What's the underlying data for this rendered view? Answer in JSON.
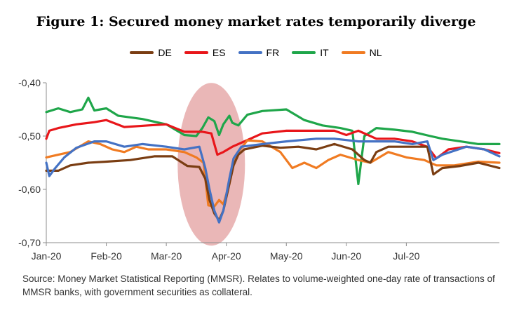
{
  "title": "Figure 1: Secured money market rates temporarily diverge",
  "source": "Source: Money Market Statistical Reporting (MMSR). Relates to volume-weighted one-day rate of transactions of MMSR banks, with government securities as collateral.",
  "chart_data": {
    "type": "line",
    "x_ticks": [
      "Jan-20",
      "Feb-20",
      "Mar-20",
      "Apr-20",
      "May-20",
      "Jun-20",
      "Jul-20"
    ],
    "y_ticks": [
      "-0,40",
      "-0,50",
      "-0,60",
      "-0,70"
    ],
    "ylim": [
      -0.7,
      -0.4
    ],
    "xlim": [
      0,
      7.55
    ],
    "grid": false,
    "legend_position": "top",
    "highlight": {
      "shape": "ellipse",
      "x_center": 2.75,
      "y_center": -0.553,
      "color": "#d97b7b"
    },
    "series": [
      {
        "name": "DE",
        "color": "#7a3d12",
        "points": [
          [
            0.0,
            -0.565
          ],
          [
            0.2,
            -0.565
          ],
          [
            0.4,
            -0.555
          ],
          [
            0.7,
            -0.55
          ],
          [
            1.0,
            -0.548
          ],
          [
            1.4,
            -0.545
          ],
          [
            1.8,
            -0.538
          ],
          [
            2.1,
            -0.538
          ],
          [
            2.35,
            -0.556
          ],
          [
            2.55,
            -0.558
          ],
          [
            2.65,
            -0.58
          ],
          [
            2.72,
            -0.62
          ],
          [
            2.8,
            -0.645
          ],
          [
            2.88,
            -0.658
          ],
          [
            2.95,
            -0.64
          ],
          [
            3.05,
            -0.59
          ],
          [
            3.12,
            -0.555
          ],
          [
            3.2,
            -0.535
          ],
          [
            3.3,
            -0.525
          ],
          [
            3.6,
            -0.518
          ],
          [
            3.9,
            -0.522
          ],
          [
            4.2,
            -0.52
          ],
          [
            4.5,
            -0.525
          ],
          [
            4.8,
            -0.515
          ],
          [
            5.1,
            -0.525
          ],
          [
            5.3,
            -0.545
          ],
          [
            5.4,
            -0.55
          ],
          [
            5.5,
            -0.53
          ],
          [
            5.7,
            -0.52
          ],
          [
            6.0,
            -0.52
          ],
          [
            6.35,
            -0.52
          ],
          [
            6.45,
            -0.572
          ],
          [
            6.6,
            -0.56
          ],
          [
            6.9,
            -0.556
          ],
          [
            7.2,
            -0.55
          ],
          [
            7.55,
            -0.56
          ]
        ]
      },
      {
        "name": "ES",
        "color": "#e8161a",
        "points": [
          [
            0.0,
            -0.505
          ],
          [
            0.05,
            -0.49
          ],
          [
            0.2,
            -0.485
          ],
          [
            0.5,
            -0.478
          ],
          [
            0.8,
            -0.474
          ],
          [
            1.0,
            -0.47
          ],
          [
            1.3,
            -0.483
          ],
          [
            1.7,
            -0.48
          ],
          [
            2.0,
            -0.478
          ],
          [
            2.3,
            -0.492
          ],
          [
            2.6,
            -0.492
          ],
          [
            2.75,
            -0.495
          ],
          [
            2.85,
            -0.535
          ],
          [
            2.95,
            -0.53
          ],
          [
            3.1,
            -0.52
          ],
          [
            3.3,
            -0.51
          ],
          [
            3.6,
            -0.495
          ],
          [
            4.0,
            -0.49
          ],
          [
            4.5,
            -0.49
          ],
          [
            4.8,
            -0.49
          ],
          [
            5.0,
            -0.498
          ],
          [
            5.2,
            -0.49
          ],
          [
            5.5,
            -0.505
          ],
          [
            5.8,
            -0.505
          ],
          [
            6.1,
            -0.51
          ],
          [
            6.35,
            -0.52
          ],
          [
            6.5,
            -0.542
          ],
          [
            6.7,
            -0.525
          ],
          [
            7.0,
            -0.52
          ],
          [
            7.3,
            -0.525
          ],
          [
            7.55,
            -0.532
          ]
        ]
      },
      {
        "name": "FR",
        "color": "#4472c4",
        "points": [
          [
            0.0,
            -0.55
          ],
          [
            0.05,
            -0.575
          ],
          [
            0.15,
            -0.56
          ],
          [
            0.3,
            -0.54
          ],
          [
            0.5,
            -0.522
          ],
          [
            0.8,
            -0.51
          ],
          [
            1.0,
            -0.51
          ],
          [
            1.3,
            -0.52
          ],
          [
            1.6,
            -0.515
          ],
          [
            2.0,
            -0.52
          ],
          [
            2.3,
            -0.525
          ],
          [
            2.55,
            -0.52
          ],
          [
            2.65,
            -0.56
          ],
          [
            2.72,
            -0.6
          ],
          [
            2.8,
            -0.64
          ],
          [
            2.88,
            -0.662
          ],
          [
            2.95,
            -0.64
          ],
          [
            3.05,
            -0.58
          ],
          [
            3.12,
            -0.542
          ],
          [
            3.25,
            -0.52
          ],
          [
            3.6,
            -0.515
          ],
          [
            4.0,
            -0.51
          ],
          [
            4.5,
            -0.505
          ],
          [
            4.8,
            -0.505
          ],
          [
            5.2,
            -0.51
          ],
          [
            5.5,
            -0.51
          ],
          [
            5.8,
            -0.51
          ],
          [
            6.1,
            -0.515
          ],
          [
            6.35,
            -0.51
          ],
          [
            6.45,
            -0.545
          ],
          [
            6.6,
            -0.535
          ],
          [
            7.0,
            -0.52
          ],
          [
            7.3,
            -0.525
          ],
          [
            7.55,
            -0.538
          ]
        ]
      },
      {
        "name": "IT",
        "color": "#1fa64a",
        "points": [
          [
            0.0,
            -0.455
          ],
          [
            0.2,
            -0.448
          ],
          [
            0.4,
            -0.455
          ],
          [
            0.6,
            -0.45
          ],
          [
            0.7,
            -0.428
          ],
          [
            0.8,
            -0.452
          ],
          [
            1.0,
            -0.448
          ],
          [
            1.2,
            -0.462
          ],
          [
            1.6,
            -0.468
          ],
          [
            2.0,
            -0.478
          ],
          [
            2.3,
            -0.498
          ],
          [
            2.5,
            -0.5
          ],
          [
            2.6,
            -0.485
          ],
          [
            2.7,
            -0.465
          ],
          [
            2.8,
            -0.472
          ],
          [
            2.88,
            -0.498
          ],
          [
            2.95,
            -0.478
          ],
          [
            3.05,
            -0.462
          ],
          [
            3.1,
            -0.475
          ],
          [
            3.2,
            -0.48
          ],
          [
            3.35,
            -0.46
          ],
          [
            3.6,
            -0.453
          ],
          [
            4.0,
            -0.45
          ],
          [
            4.3,
            -0.47
          ],
          [
            4.6,
            -0.48
          ],
          [
            4.9,
            -0.485
          ],
          [
            5.1,
            -0.49
          ],
          [
            5.2,
            -0.59
          ],
          [
            5.3,
            -0.5
          ],
          [
            5.5,
            -0.485
          ],
          [
            5.8,
            -0.488
          ],
          [
            6.1,
            -0.492
          ],
          [
            6.4,
            -0.5
          ],
          [
            6.6,
            -0.505
          ],
          [
            6.9,
            -0.51
          ],
          [
            7.2,
            -0.515
          ],
          [
            7.55,
            -0.515
          ]
        ]
      },
      {
        "name": "NL",
        "color": "#f07b22",
        "points": [
          [
            0.0,
            -0.54
          ],
          [
            0.2,
            -0.535
          ],
          [
            0.4,
            -0.53
          ],
          [
            0.7,
            -0.51
          ],
          [
            0.9,
            -0.515
          ],
          [
            1.1,
            -0.525
          ],
          [
            1.3,
            -0.53
          ],
          [
            1.5,
            -0.52
          ],
          [
            1.7,
            -0.525
          ],
          [
            2.0,
            -0.525
          ],
          [
            2.3,
            -0.53
          ],
          [
            2.5,
            -0.54
          ],
          [
            2.62,
            -0.55
          ],
          [
            2.7,
            -0.63
          ],
          [
            2.8,
            -0.632
          ],
          [
            2.88,
            -0.62
          ],
          [
            2.95,
            -0.628
          ],
          [
            3.05,
            -0.59
          ],
          [
            3.12,
            -0.55
          ],
          [
            3.2,
            -0.53
          ],
          [
            3.35,
            -0.508
          ],
          [
            3.6,
            -0.51
          ],
          [
            3.9,
            -0.53
          ],
          [
            4.1,
            -0.56
          ],
          [
            4.3,
            -0.55
          ],
          [
            4.5,
            -0.56
          ],
          [
            4.7,
            -0.545
          ],
          [
            4.9,
            -0.535
          ],
          [
            5.2,
            -0.545
          ],
          [
            5.4,
            -0.55
          ],
          [
            5.7,
            -0.53
          ],
          [
            6.0,
            -0.54
          ],
          [
            6.3,
            -0.545
          ],
          [
            6.5,
            -0.555
          ],
          [
            6.8,
            -0.555
          ],
          [
            7.2,
            -0.548
          ],
          [
            7.55,
            -0.55
          ]
        ]
      }
    ]
  }
}
